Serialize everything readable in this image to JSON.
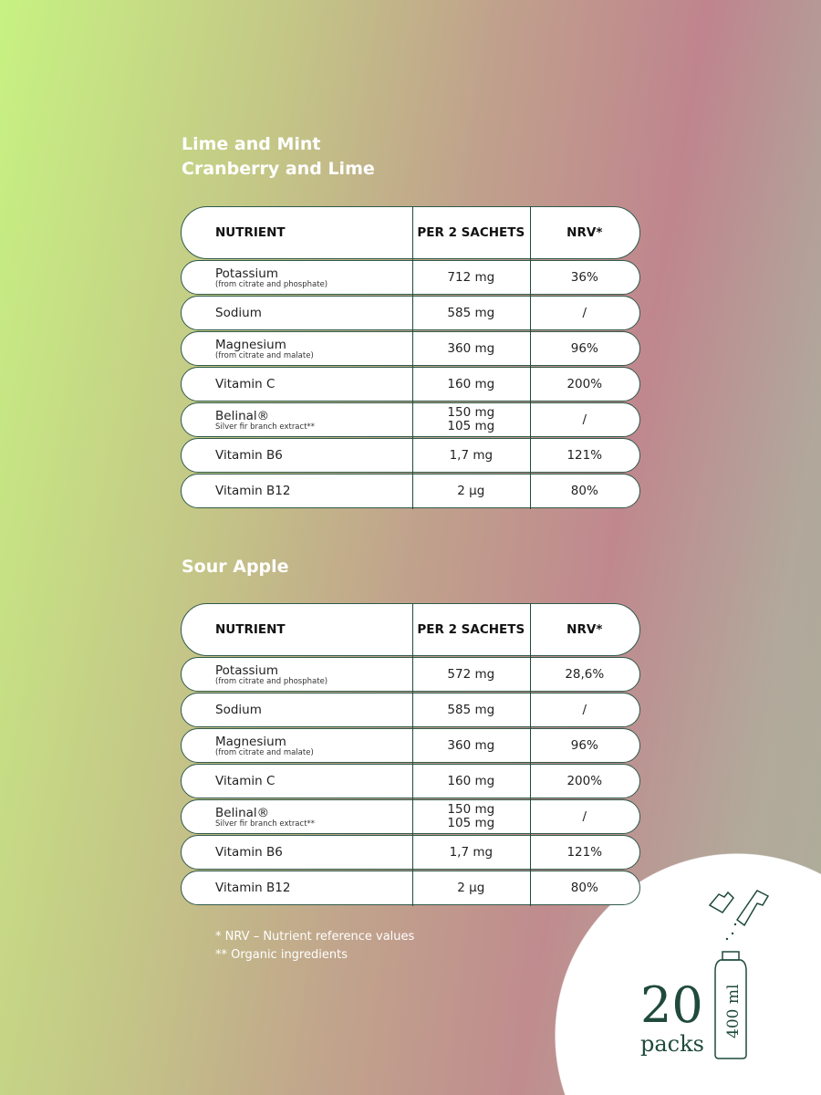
{
  "sections": [
    {
      "titles": [
        "Lime and Mint",
        "Cranberry and Lime"
      ],
      "headers": [
        "NUTRIENT",
        "PER 2 SACHETS",
        "NRV*"
      ],
      "rows": [
        {
          "name": "Potassium",
          "sub": "(from citrate and phosphate)",
          "amount": "712 mg",
          "amount2": "",
          "nrv": "36%"
        },
        {
          "name": "Sodium",
          "sub": "",
          "amount": "585 mg",
          "amount2": "",
          "nrv": "/"
        },
        {
          "name": "Magnesium",
          "sub": "(from citrate and malate)",
          "amount": "360 mg",
          "amount2": "",
          "nrv": "96%"
        },
        {
          "name": "Vitamin C",
          "sub": "",
          "amount": "160 mg",
          "amount2": "",
          "nrv": "200%"
        },
        {
          "name": "Belinal®",
          "sub": "Silver fir branch extract**",
          "amount": "150 mg",
          "amount2": "105 mg",
          "nrv": "/"
        },
        {
          "name": "Vitamin B6",
          "sub": "",
          "amount": "1,7 mg",
          "amount2": "",
          "nrv": "121%"
        },
        {
          "name": "Vitamin B12",
          "sub": "",
          "amount": "2 µg",
          "amount2": "",
          "nrv": "80%"
        }
      ]
    },
    {
      "titles": [
        "Sour Apple"
      ],
      "headers": [
        "NUTRIENT",
        "PER 2 SACHETS",
        "NRV*"
      ],
      "rows": [
        {
          "name": "Potassium",
          "sub": "(from citrate and phosphate)",
          "amount": "572 mg",
          "amount2": "",
          "nrv": "28,6%"
        },
        {
          "name": "Sodium",
          "sub": "",
          "amount": "585 mg",
          "amount2": "",
          "nrv": "/"
        },
        {
          "name": "Magnesium",
          "sub": "(from citrate and malate)",
          "amount": "360 mg",
          "amount2": "",
          "nrv": "96%"
        },
        {
          "name": "Vitamin C",
          "sub": "",
          "amount": "160 mg",
          "amount2": "",
          "nrv": "200%"
        },
        {
          "name": "Belinal®",
          "sub": "Silver fir branch extract**",
          "amount": "150 mg",
          "amount2": "105 mg",
          "nrv": "/"
        },
        {
          "name": "Vitamin B6",
          "sub": "",
          "amount": "1,7 mg",
          "amount2": "",
          "nrv": "121%"
        },
        {
          "name": "Vitamin B12",
          "sub": "",
          "amount": "2 µg",
          "amount2": "",
          "nrv": "80%"
        }
      ]
    }
  ],
  "footnotes": [
    "* NRV – Nutrient reference values",
    "** Organic ingredients"
  ],
  "pack": {
    "count": "20",
    "unit": "packs",
    "volume": "400 ml"
  },
  "colors": {
    "accent": "#1f4a3c",
    "lime": "#c7f282",
    "pink": "#bf848e"
  }
}
